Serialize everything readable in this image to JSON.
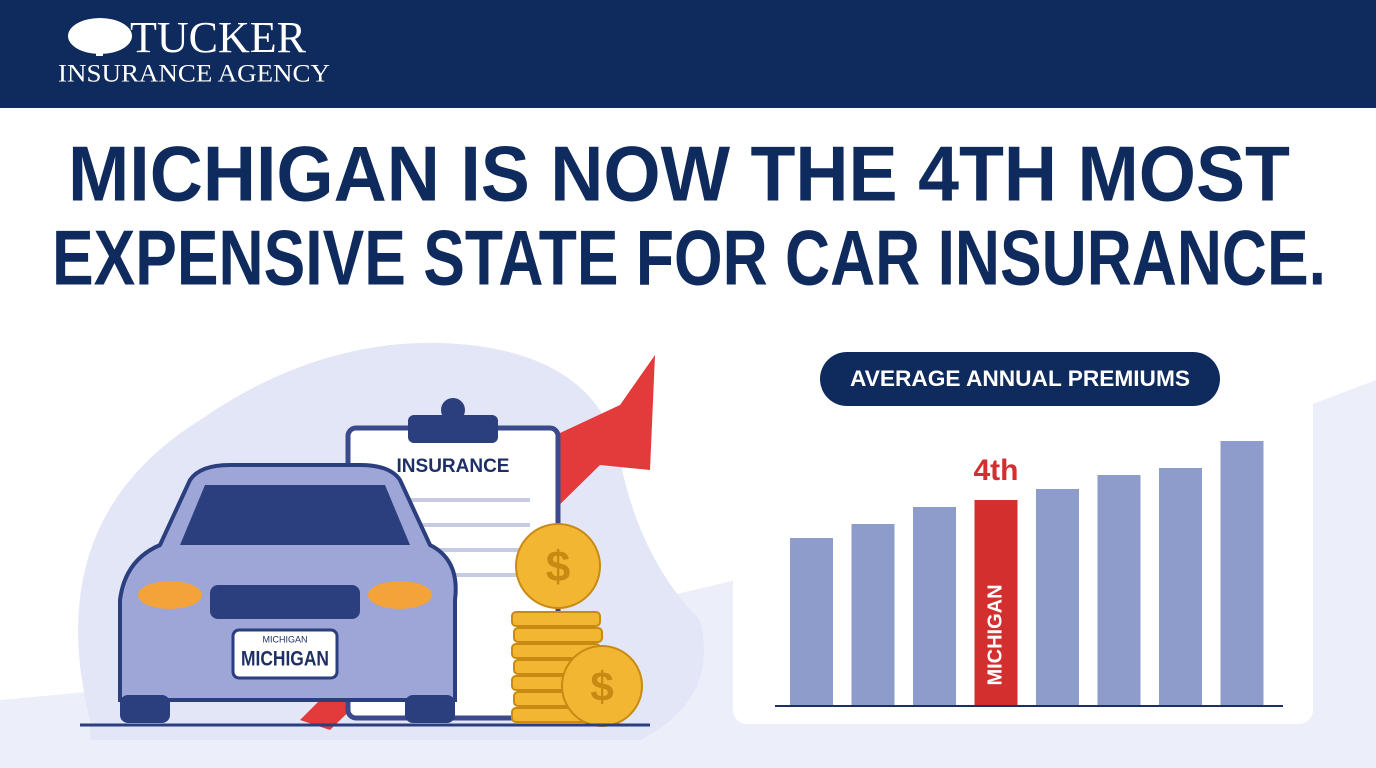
{
  "header": {
    "brand": "TUCKER",
    "subtitle": "INSURANCE AGENCY"
  },
  "headline": [
    "MICHIGAN IS NOW THE 4TH MOST",
    "EXPENSIVE STATE FOR CAR INSURANCE."
  ],
  "illustration": {
    "document_label": "INSURANCE",
    "plate_top": "MICHIGAN",
    "plate_main": "MICHIGAN"
  },
  "chart_data": {
    "type": "bar",
    "title": "AVERAGE ANNUAL PREMIUMS",
    "categories": [
      null,
      null,
      null,
      "MICHIGAN",
      null,
      null,
      null,
      null
    ],
    "values": [
      167,
      181,
      198,
      205,
      216,
      230,
      237,
      264
    ],
    "colors": [
      "#8e9ccc",
      "#8e9ccc",
      "#8e9ccc",
      "#d32f2f",
      "#8e9ccc",
      "#8e9ccc",
      "#8e9ccc",
      "#8e9ccc"
    ],
    "annotation": "4th"
  }
}
